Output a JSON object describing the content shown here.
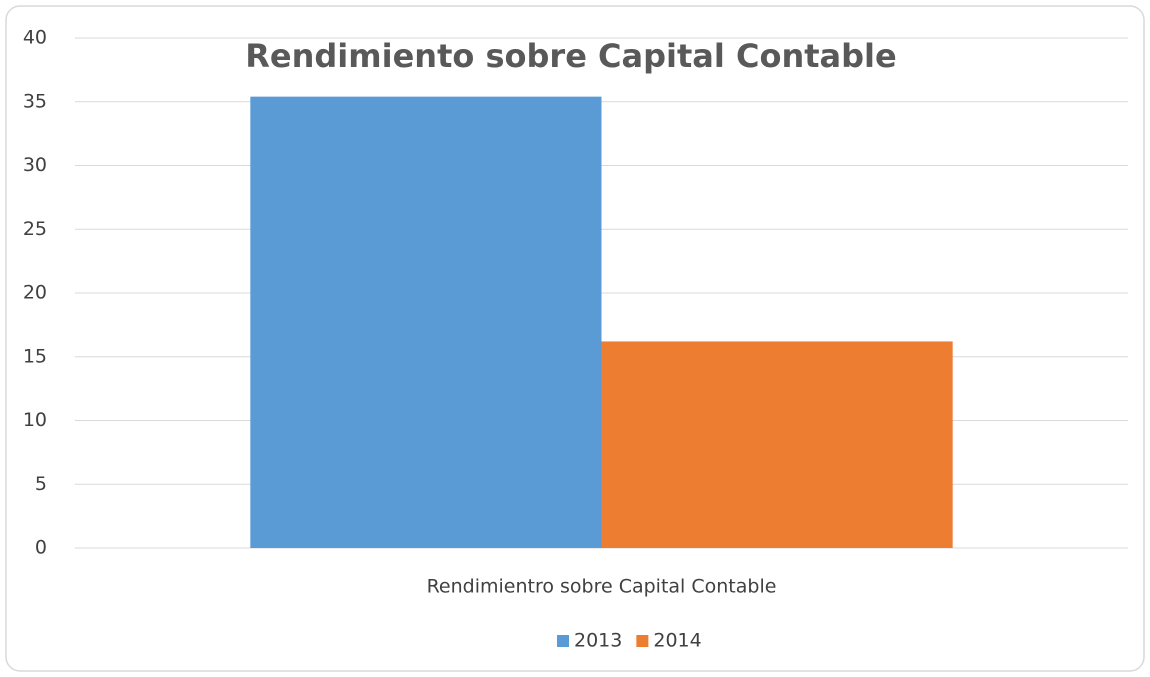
{
  "chart_data": {
    "type": "bar",
    "title": "Rendimiento sobre Capital Contable",
    "categories": [
      "Rendimientro sobre Capital Contable"
    ],
    "series": [
      {
        "name": "2013",
        "color": "#5b9bd5",
        "values": [
          35.4
        ]
      },
      {
        "name": "2014",
        "color": "#ed7d31",
        "values": [
          16.2
        ]
      }
    ],
    "ylim": [
      0,
      40
    ],
    "yticks": [
      0,
      5,
      10,
      15,
      20,
      25,
      30,
      35,
      40
    ],
    "grid": true,
    "legend": "bottom"
  }
}
